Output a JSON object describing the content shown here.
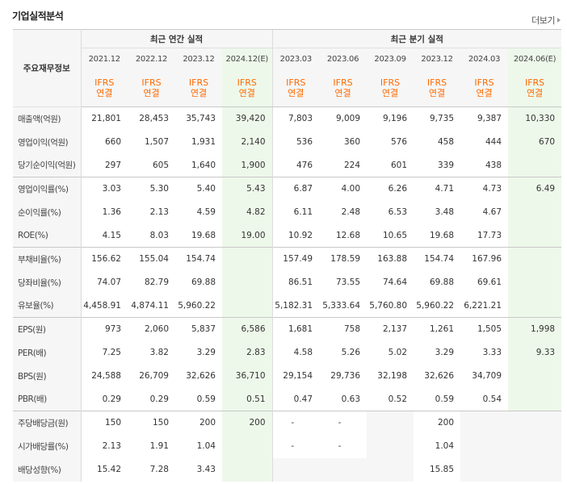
{
  "title": "기업실적분석",
  "more_label": "더보기",
  "header": {
    "row_head": "주요재무정보",
    "annual_label": "최근 연간 실적",
    "quarter_label": "최근 분기 실적",
    "periods": [
      "2021.12",
      "2022.12",
      "2023.12",
      "2024.12(E)",
      "2023.03",
      "2023.06",
      "2023.09",
      "2023.12",
      "2024.03",
      "2024.06(E)"
    ],
    "accounting_line1": "IFRS",
    "accounting_line2": "연결"
  },
  "rows": [
    {
      "label": "매출액(억원)",
      "values": [
        "21,801",
        "28,453",
        "35,743",
        "39,420",
        "7,803",
        "9,009",
        "9,196",
        "9,735",
        "9,387",
        "10,330"
      ]
    },
    {
      "label": "영업이익(억원)",
      "values": [
        "660",
        "1,507",
        "1,931",
        "2,140",
        "536",
        "360",
        "576",
        "458",
        "444",
        "670"
      ]
    },
    {
      "label": "당기순이익(억원)",
      "values": [
        "297",
        "605",
        "1,640",
        "1,900",
        "476",
        "224",
        "601",
        "339",
        "438",
        ""
      ]
    },
    {
      "label": "영업이익률(%)",
      "values": [
        "3.03",
        "5.30",
        "5.40",
        "5.43",
        "6.87",
        "4.00",
        "6.26",
        "4.71",
        "4.73",
        "6.49"
      ]
    },
    {
      "label": "순이익률(%)",
      "values": [
        "1.36",
        "2.13",
        "4.59",
        "4.82",
        "6.11",
        "2.48",
        "6.53",
        "3.48",
        "4.67",
        ""
      ]
    },
    {
      "label": "ROE(%)",
      "values": [
        "4.15",
        "8.03",
        "19.68",
        "19.00",
        "10.92",
        "12.68",
        "10.65",
        "19.68",
        "17.73",
        ""
      ]
    },
    {
      "label": "부채비율(%)",
      "values": [
        "156.62",
        "155.04",
        "154.74",
        "",
        "157.49",
        "178.59",
        "163.88",
        "154.74",
        "167.96",
        ""
      ]
    },
    {
      "label": "당좌비율(%)",
      "values": [
        "74.07",
        "82.79",
        "69.88",
        "",
        "86.51",
        "73.55",
        "74.64",
        "69.88",
        "69.61",
        ""
      ]
    },
    {
      "label": "유보율(%)",
      "values": [
        "4,458.91",
        "4,874.11",
        "5,960.22",
        "",
        "5,182.31",
        "5,333.64",
        "5,760.80",
        "5,960.22",
        "6,221.21",
        ""
      ]
    },
    {
      "label": "EPS(원)",
      "values": [
        "973",
        "2,060",
        "5,837",
        "6,586",
        "1,681",
        "758",
        "2,137",
        "1,261",
        "1,505",
        "1,998"
      ]
    },
    {
      "label": "PER(배)",
      "values": [
        "7.25",
        "3.82",
        "3.29",
        "2.83",
        "4.58",
        "5.26",
        "5.02",
        "3.29",
        "3.33",
        "9.33"
      ]
    },
    {
      "label": "BPS(원)",
      "values": [
        "24,588",
        "26,709",
        "32,626",
        "36,710",
        "29,154",
        "29,736",
        "32,198",
        "32,626",
        "34,709",
        ""
      ]
    },
    {
      "label": "PBR(배)",
      "values": [
        "0.29",
        "0.29",
        "0.59",
        "0.51",
        "0.47",
        "0.63",
        "0.52",
        "0.59",
        "0.54",
        ""
      ]
    },
    {
      "label": "주당배당금(원)",
      "values": [
        "150",
        "150",
        "200",
        "200",
        "-",
        "-",
        "",
        "200",
        "",
        ""
      ]
    },
    {
      "label": "시가배당률(%)",
      "values": [
        "2.13",
        "1.91",
        "1.04",
        "",
        "-",
        "-",
        "",
        "1.04",
        "",
        ""
      ]
    },
    {
      "label": "배당성향(%)",
      "values": [
        "15.42",
        "7.28",
        "3.43",
        "",
        "",
        "",
        "",
        "15.85",
        "",
        ""
      ]
    }
  ]
}
